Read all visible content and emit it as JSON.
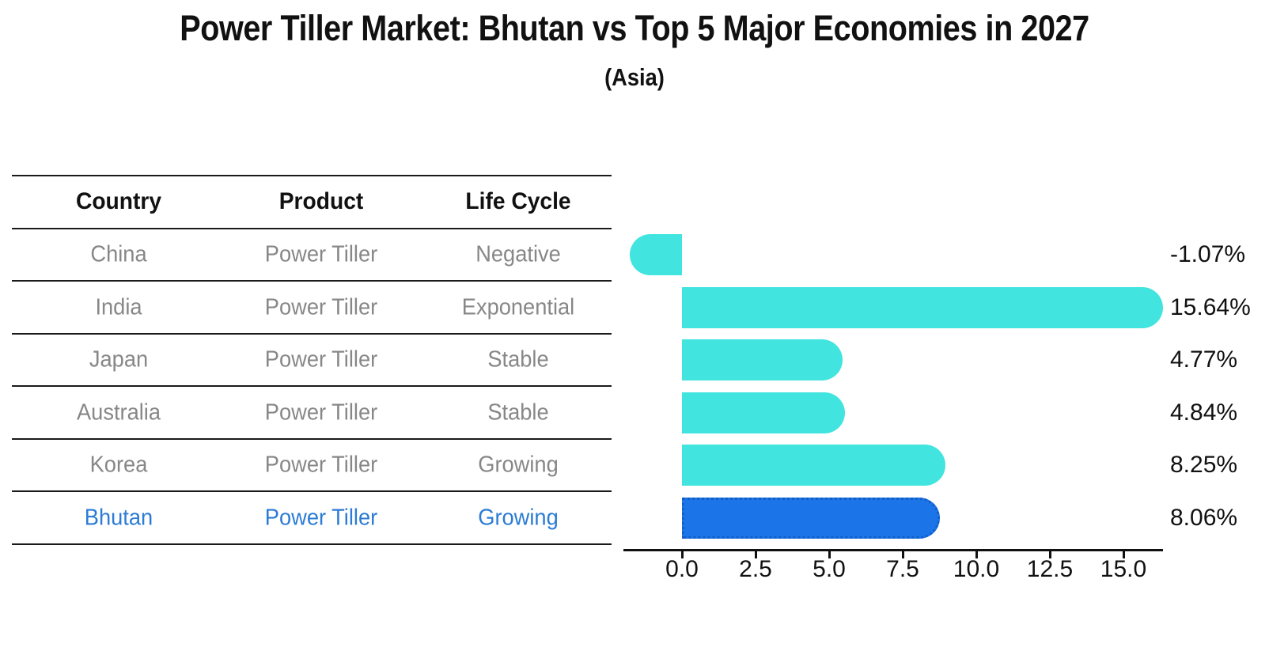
{
  "header": {
    "title": "Power Tiller Market: Bhutan vs Top 5 Major Economies in 2027",
    "subtitle": "(Asia)"
  },
  "table": {
    "headers": [
      "Country",
      "Product",
      "Life Cycle"
    ],
    "rows": [
      {
        "country": "China",
        "product": "Power Tiller",
        "life_cycle": "Negative",
        "highlight": false
      },
      {
        "country": "India",
        "product": "Power Tiller",
        "life_cycle": "Exponential",
        "highlight": false
      },
      {
        "country": "Japan",
        "product": "Power Tiller",
        "life_cycle": "Stable",
        "highlight": false
      },
      {
        "country": "Australia",
        "product": "Power Tiller",
        "life_cycle": "Stable",
        "highlight": false
      },
      {
        "country": "Korea",
        "product": "Power Tiller",
        "life_cycle": "Growing",
        "highlight": false
      },
      {
        "country": "Bhutan",
        "product": "Power Tiller",
        "life_cycle": "Growing",
        "highlight": true
      }
    ],
    "text_color": "#878787",
    "header_color": "#111111",
    "highlight_text_color": "#2c7bd4"
  },
  "chart_data": {
    "type": "bar",
    "orientation": "horizontal",
    "title": "Power Tiller Market: Bhutan vs Top 5 Major Economies in 2027",
    "subtitle": "(Asia)",
    "categories": [
      "China",
      "India",
      "Japan",
      "Australia",
      "Korea",
      "Bhutan"
    ],
    "values": [
      -1.07,
      15.64,
      4.77,
      4.84,
      8.25,
      8.06
    ],
    "value_labels": [
      "-1.07%",
      "15.64%",
      "4.77%",
      "4.84%",
      "8.25%",
      "8.06%"
    ],
    "xlabel": "",
    "ylabel": "",
    "xticks": [
      0.0,
      2.5,
      5.0,
      7.5,
      10.0,
      12.5,
      15.0
    ],
    "xtick_labels": [
      "0.0",
      "2.5",
      "5.0",
      "7.5",
      "10.0",
      "12.5",
      "15.0"
    ],
    "xlim": [
      -2.0,
      16.35
    ],
    "grid": false,
    "legend": false,
    "bar_color": "#41E4DF",
    "highlight_bar_color": "#1B74E8",
    "highlight_border_color": "#125FC8",
    "highlight_index": 5
  }
}
